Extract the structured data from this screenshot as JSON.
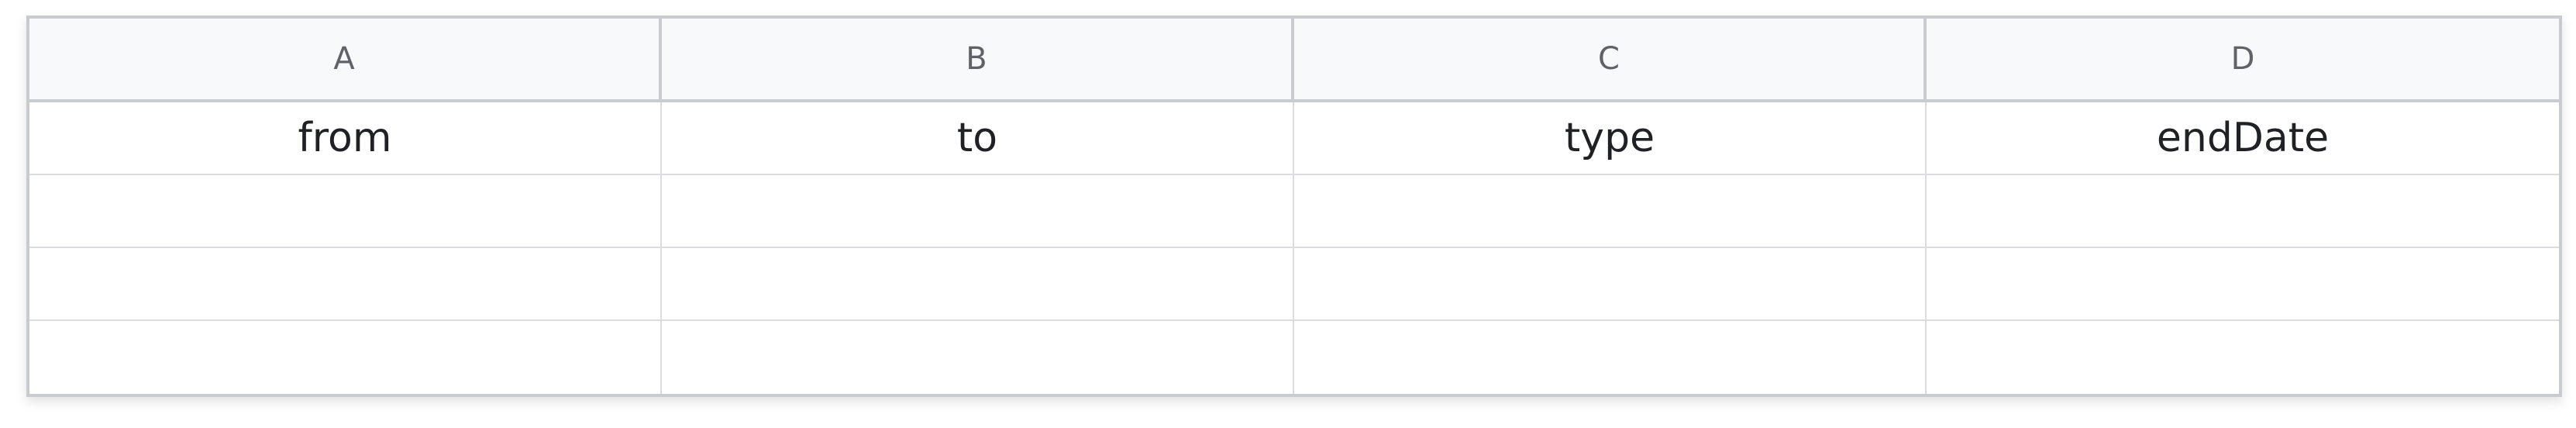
{
  "columns": [
    "A",
    "B",
    "C",
    "D"
  ],
  "rows": [
    [
      "from",
      "to",
      "type",
      "endDate"
    ],
    [
      "",
      "",
      "",
      ""
    ],
    [
      "",
      "",
      "",
      ""
    ],
    [
      "",
      "",
      "",
      ""
    ]
  ]
}
